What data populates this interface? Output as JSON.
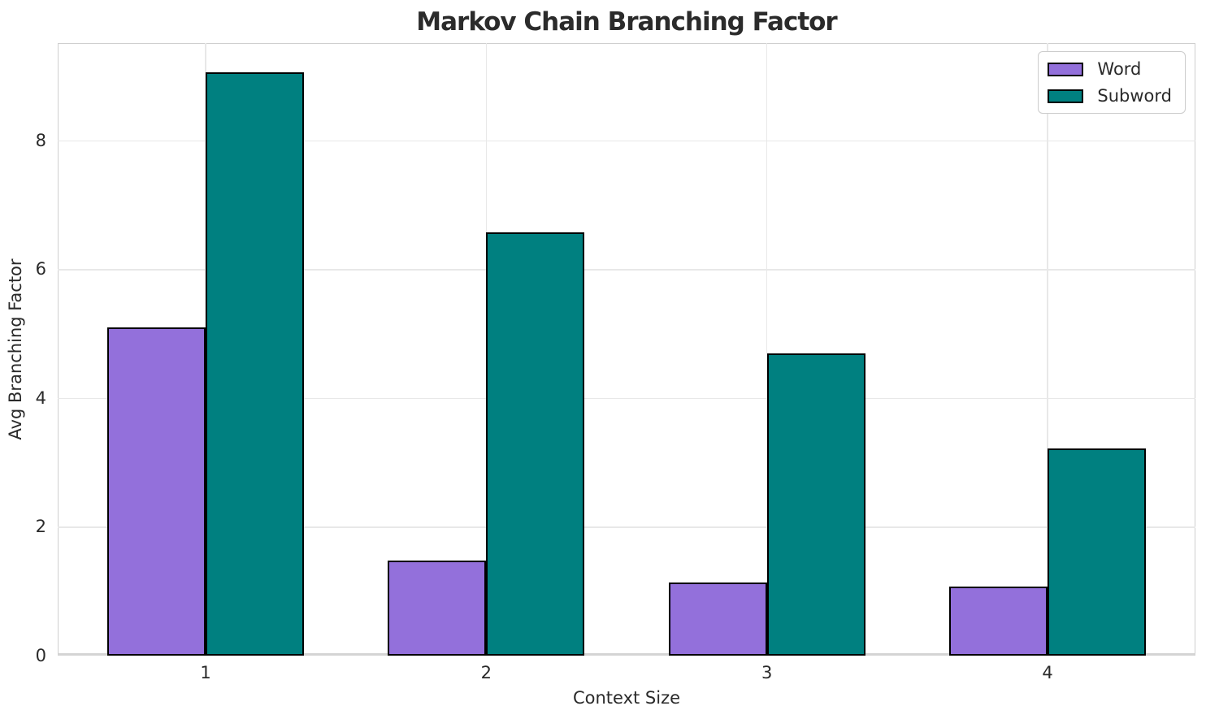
{
  "chart_data": {
    "type": "bar",
    "title": "Markov Chain Branching Factor",
    "xlabel": "Context Size",
    "ylabel": "Avg Branching Factor",
    "categories": [
      "1",
      "2",
      "3",
      "4"
    ],
    "series": [
      {
        "name": "Word",
        "color": "#9370DB",
        "values": [
          5.09,
          1.48,
          1.13,
          1.07
        ]
      },
      {
        "name": "Subword",
        "color": "#008080",
        "values": [
          9.05,
          6.57,
          4.69,
          3.22
        ]
      }
    ],
    "ylim": [
      0,
      9.51
    ],
    "yticks": [
      0,
      2,
      4,
      6,
      8
    ],
    "grid": true,
    "legend_position": "upper right",
    "bar_edge_color": "#000000",
    "grid_color": "#e8e8e8"
  }
}
